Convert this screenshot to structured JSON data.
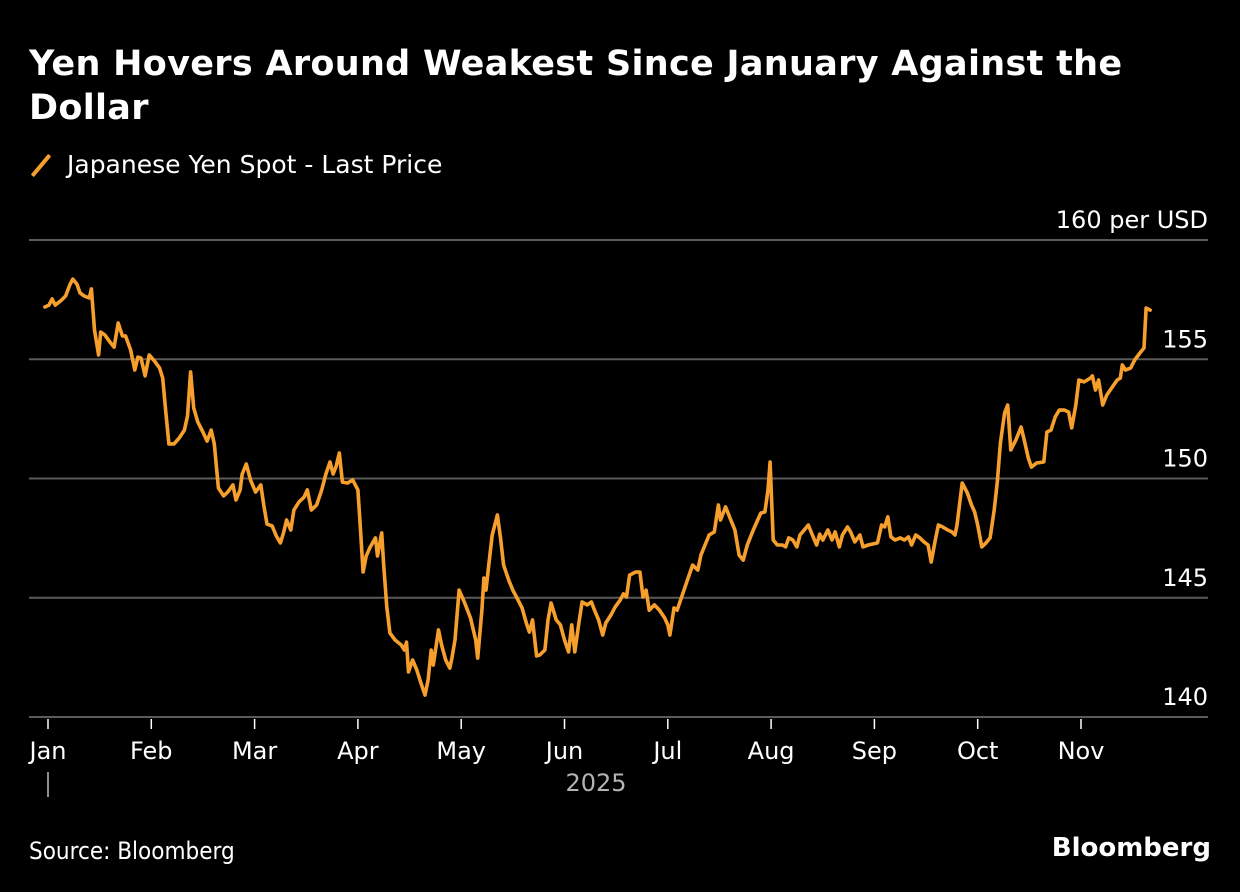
{
  "header": {
    "title": "Yen Hovers Around Weakest Since January Against the Dollar"
  },
  "footer": {
    "source": "Source: Bloomberg",
    "brand": "Bloomberg"
  },
  "colors": {
    "background": "#000000",
    "series": "#f79f2d",
    "grid": "#5a5a5a",
    "text": "#ffffff",
    "muted": "#b3b3b3"
  },
  "chart_data": {
    "type": "line",
    "title": "Yen Hovers Around Weakest Since January Against the Dollar",
    "xlabel": "2025",
    "ylabel": "per USD",
    "legend": [
      {
        "name": "Japanese Yen Spot - Last Price",
        "color": "#f79f2d",
        "position": "top-left"
      }
    ],
    "y_unit_label": "160 per USD",
    "ylim": [
      140,
      160
    ],
    "yticks": [
      {
        "value": 160,
        "label": "160 per USD"
      },
      {
        "value": 155,
        "label": "155"
      },
      {
        "value": 150,
        "label": "150"
      },
      {
        "value": 145,
        "label": "145"
      },
      {
        "value": 140,
        "label": "140"
      }
    ],
    "x_unit": "months since Jan 1 2025",
    "xlim": [
      -0.15,
      11.5
    ],
    "xticks": [
      {
        "value": 0,
        "label": "Jan"
      },
      {
        "value": 1,
        "label": "Feb"
      },
      {
        "value": 2,
        "label": "Mar"
      },
      {
        "value": 3,
        "label": "Apr"
      },
      {
        "value": 4,
        "label": "May"
      },
      {
        "value": 5,
        "label": "Jun"
      },
      {
        "value": 6,
        "label": "Jul"
      },
      {
        "value": 7,
        "label": "Aug"
      },
      {
        "value": 8,
        "label": "Sep"
      },
      {
        "value": 9,
        "label": "Oct"
      },
      {
        "value": 10,
        "label": "Nov"
      }
    ],
    "year_label": "2025",
    "grid": true,
    "series": [
      {
        "name": "Japanese Yen Spot - Last Price",
        "points": [
          [
            -0.03,
            157.19
          ],
          [
            0.01,
            157.27
          ],
          [
            0.04,
            157.53
          ],
          [
            0.07,
            157.27
          ],
          [
            0.12,
            157.44
          ],
          [
            0.17,
            157.65
          ],
          [
            0.21,
            158.11
          ],
          [
            0.24,
            158.36
          ],
          [
            0.28,
            158.15
          ],
          [
            0.31,
            157.78
          ],
          [
            0.35,
            157.65
          ],
          [
            0.4,
            157.57
          ],
          [
            0.42,
            157.95
          ],
          [
            0.45,
            156.23
          ],
          [
            0.49,
            155.18
          ],
          [
            0.51,
            156.14
          ],
          [
            0.55,
            156.02
          ],
          [
            0.6,
            155.72
          ],
          [
            0.64,
            155.51
          ],
          [
            0.68,
            156.52
          ],
          [
            0.72,
            155.98
          ],
          [
            0.75,
            155.98
          ],
          [
            0.8,
            155.39
          ],
          [
            0.84,
            154.55
          ],
          [
            0.87,
            155.09
          ],
          [
            0.9,
            155.05
          ],
          [
            0.94,
            154.3
          ],
          [
            0.98,
            155.18
          ],
          [
            1.03,
            154.93
          ],
          [
            1.08,
            154.63
          ],
          [
            1.11,
            154.21
          ],
          [
            1.14,
            152.79
          ],
          [
            1.17,
            151.45
          ],
          [
            1.22,
            151.45
          ],
          [
            1.27,
            151.7
          ],
          [
            1.32,
            152.03
          ],
          [
            1.35,
            152.62
          ],
          [
            1.38,
            154.47
          ],
          [
            1.41,
            152.96
          ],
          [
            1.45,
            152.37
          ],
          [
            1.5,
            151.95
          ],
          [
            1.54,
            151.57
          ],
          [
            1.58,
            152.03
          ],
          [
            1.61,
            151.45
          ],
          [
            1.65,
            149.6
          ],
          [
            1.7,
            149.27
          ],
          [
            1.74,
            149.43
          ],
          [
            1.79,
            149.73
          ],
          [
            1.82,
            149.1
          ],
          [
            1.86,
            149.52
          ],
          [
            1.88,
            150.19
          ],
          [
            1.92,
            150.61
          ],
          [
            1.96,
            149.94
          ],
          [
            2.01,
            149.43
          ],
          [
            2.06,
            149.73
          ],
          [
            2.09,
            148.85
          ],
          [
            2.12,
            148.09
          ],
          [
            2.17,
            148.01
          ],
          [
            2.21,
            147.59
          ],
          [
            2.25,
            147.3
          ],
          [
            2.28,
            147.72
          ],
          [
            2.31,
            148.26
          ],
          [
            2.35,
            147.84
          ],
          [
            2.38,
            148.68
          ],
          [
            2.43,
            149.02
          ],
          [
            2.48,
            149.23
          ],
          [
            2.51,
            149.52
          ],
          [
            2.55,
            148.68
          ],
          [
            2.6,
            148.89
          ],
          [
            2.65,
            149.52
          ],
          [
            2.69,
            150.19
          ],
          [
            2.73,
            150.69
          ],
          [
            2.76,
            150.19
          ],
          [
            2.79,
            150.52
          ],
          [
            2.82,
            151.07
          ],
          [
            2.85,
            149.85
          ],
          [
            2.9,
            149.81
          ],
          [
            2.95,
            149.94
          ],
          [
            3.0,
            149.52
          ],
          [
            3.02,
            148.18
          ],
          [
            3.05,
            146.08
          ],
          [
            3.08,
            146.75
          ],
          [
            3.12,
            147.13
          ],
          [
            3.17,
            147.51
          ],
          [
            3.19,
            146.75
          ],
          [
            3.23,
            147.72
          ],
          [
            3.25,
            146.37
          ],
          [
            3.28,
            144.61
          ],
          [
            3.31,
            143.52
          ],
          [
            3.36,
            143.23
          ],
          [
            3.42,
            143.02
          ],
          [
            3.45,
            142.81
          ],
          [
            3.47,
            143.14
          ],
          [
            3.49,
            141.89
          ],
          [
            3.53,
            142.39
          ],
          [
            3.57,
            141.97
          ],
          [
            3.61,
            141.43
          ],
          [
            3.65,
            140.92
          ],
          [
            3.68,
            141.55
          ],
          [
            3.71,
            142.81
          ],
          [
            3.73,
            142.18
          ],
          [
            3.78,
            143.65
          ],
          [
            3.81,
            143.02
          ],
          [
            3.85,
            142.39
          ],
          [
            3.89,
            142.05
          ],
          [
            3.91,
            142.47
          ],
          [
            3.94,
            143.23
          ],
          [
            3.98,
            145.32
          ],
          [
            4.03,
            144.82
          ],
          [
            4.09,
            144.15
          ],
          [
            4.14,
            143.23
          ],
          [
            4.16,
            142.47
          ],
          [
            4.2,
            144.48
          ],
          [
            4.22,
            145.83
          ],
          [
            4.24,
            145.32
          ],
          [
            4.27,
            146.5
          ],
          [
            4.3,
            147.63
          ],
          [
            4.35,
            148.47
          ],
          [
            4.38,
            147.51
          ],
          [
            4.41,
            146.37
          ],
          [
            4.46,
            145.74
          ],
          [
            4.5,
            145.32
          ],
          [
            4.54,
            144.99
          ],
          [
            4.59,
            144.57
          ],
          [
            4.63,
            143.94
          ],
          [
            4.66,
            143.56
          ],
          [
            4.69,
            144.07
          ],
          [
            4.73,
            142.56
          ],
          [
            4.76,
            142.6
          ],
          [
            4.81,
            142.81
          ],
          [
            4.84,
            144.07
          ],
          [
            4.87,
            144.78
          ],
          [
            4.92,
            144.07
          ],
          [
            4.96,
            143.86
          ],
          [
            5.0,
            143.23
          ],
          [
            5.04,
            142.73
          ],
          [
            5.07,
            143.86
          ],
          [
            5.1,
            142.73
          ],
          [
            5.14,
            143.98
          ],
          [
            5.17,
            144.82
          ],
          [
            5.22,
            144.7
          ],
          [
            5.26,
            144.82
          ],
          [
            5.29,
            144.48
          ],
          [
            5.33,
            144.07
          ],
          [
            5.37,
            143.44
          ],
          [
            5.4,
            143.94
          ],
          [
            5.45,
            144.28
          ],
          [
            5.49,
            144.61
          ],
          [
            5.54,
            144.91
          ],
          [
            5.57,
            145.16
          ],
          [
            5.6,
            145.03
          ],
          [
            5.63,
            145.95
          ],
          [
            5.69,
            146.08
          ],
          [
            5.73,
            146.08
          ],
          [
            5.76,
            145.03
          ],
          [
            5.79,
            145.32
          ],
          [
            5.82,
            144.48
          ],
          [
            5.87,
            144.7
          ],
          [
            5.92,
            144.48
          ],
          [
            5.97,
            144.15
          ],
          [
            6.0,
            143.86
          ],
          [
            6.02,
            143.44
          ],
          [
            6.06,
            144.57
          ],
          [
            6.09,
            144.48
          ],
          [
            6.14,
            145.11
          ],
          [
            6.19,
            145.74
          ],
          [
            6.24,
            146.37
          ],
          [
            6.29,
            146.16
          ],
          [
            6.32,
            146.79
          ],
          [
            6.38,
            147.42
          ],
          [
            6.4,
            147.63
          ],
          [
            6.45,
            147.76
          ],
          [
            6.49,
            148.89
          ],
          [
            6.51,
            148.26
          ],
          [
            6.56,
            148.81
          ],
          [
            6.61,
            148.26
          ],
          [
            6.65,
            147.84
          ],
          [
            6.69,
            146.79
          ],
          [
            6.73,
            146.58
          ],
          [
            6.77,
            147.21
          ],
          [
            6.82,
            147.76
          ],
          [
            6.87,
            148.26
          ],
          [
            6.9,
            148.55
          ],
          [
            6.94,
            148.6
          ],
          [
            6.97,
            149.52
          ],
          [
            6.99,
            150.69
          ],
          [
            7.02,
            147.42
          ],
          [
            7.06,
            147.21
          ],
          [
            7.11,
            147.21
          ],
          [
            7.14,
            147.13
          ],
          [
            7.17,
            147.51
          ],
          [
            7.21,
            147.42
          ],
          [
            7.25,
            147.13
          ],
          [
            7.28,
            147.63
          ],
          [
            7.32,
            147.84
          ],
          [
            7.36,
            148.05
          ],
          [
            7.4,
            147.63
          ],
          [
            7.44,
            147.21
          ],
          [
            7.47,
            147.67
          ],
          [
            7.5,
            147.42
          ],
          [
            7.55,
            147.84
          ],
          [
            7.59,
            147.42
          ],
          [
            7.62,
            147.76
          ],
          [
            7.66,
            147.13
          ],
          [
            7.69,
            147.63
          ],
          [
            7.74,
            147.97
          ],
          [
            7.77,
            147.76
          ],
          [
            7.81,
            147.34
          ],
          [
            7.86,
            147.63
          ],
          [
            7.89,
            147.13
          ],
          [
            7.94,
            147.21
          ],
          [
            8.03,
            147.3
          ],
          [
            8.07,
            148.05
          ],
          [
            8.1,
            147.97
          ],
          [
            8.13,
            148.39
          ],
          [
            8.16,
            147.55
          ],
          [
            8.2,
            147.42
          ],
          [
            8.25,
            147.51
          ],
          [
            8.29,
            147.42
          ],
          [
            8.33,
            147.55
          ],
          [
            8.36,
            147.21
          ],
          [
            8.4,
            147.63
          ],
          [
            8.44,
            147.51
          ],
          [
            8.48,
            147.34
          ],
          [
            8.52,
            147.21
          ],
          [
            8.55,
            146.5
          ],
          [
            8.59,
            147.42
          ],
          [
            8.62,
            148.05
          ],
          [
            8.66,
            147.97
          ],
          [
            8.71,
            147.84
          ],
          [
            8.75,
            147.76
          ],
          [
            8.78,
            147.63
          ],
          [
            8.8,
            148.05
          ],
          [
            8.85,
            149.81
          ],
          [
            8.9,
            149.39
          ],
          [
            8.94,
            148.89
          ],
          [
            8.97,
            148.6
          ],
          [
            9.0,
            148.05
          ],
          [
            9.04,
            147.13
          ],
          [
            9.08,
            147.3
          ],
          [
            9.12,
            147.51
          ],
          [
            9.16,
            148.68
          ],
          [
            9.19,
            149.85
          ],
          [
            9.22,
            151.49
          ],
          [
            9.26,
            152.75
          ],
          [
            9.29,
            153.08
          ],
          [
            9.32,
            151.2
          ],
          [
            9.37,
            151.62
          ],
          [
            9.42,
            152.16
          ],
          [
            9.45,
            151.62
          ],
          [
            9.49,
            150.86
          ],
          [
            9.52,
            150.48
          ],
          [
            9.57,
            150.65
          ],
          [
            9.64,
            150.69
          ],
          [
            9.67,
            151.95
          ],
          [
            9.71,
            152.03
          ],
          [
            9.75,
            152.58
          ],
          [
            9.79,
            152.87
          ],
          [
            9.84,
            152.87
          ],
          [
            9.88,
            152.79
          ],
          [
            9.91,
            152.12
          ],
          [
            9.95,
            153.08
          ],
          [
            9.98,
            154.13
          ],
          [
            10.03,
            154.05
          ],
          [
            10.09,
            154.21
          ],
          [
            10.11,
            154.3
          ],
          [
            10.14,
            153.71
          ],
          [
            10.17,
            154.13
          ],
          [
            10.21,
            153.08
          ],
          [
            10.25,
            153.5
          ],
          [
            10.31,
            153.88
          ],
          [
            10.35,
            154.13
          ],
          [
            10.38,
            154.21
          ],
          [
            10.4,
            154.76
          ],
          [
            10.43,
            154.55
          ],
          [
            10.48,
            154.63
          ],
          [
            10.52,
            154.97
          ],
          [
            10.57,
            155.26
          ],
          [
            10.61,
            155.47
          ],
          [
            10.63,
            157.15
          ],
          [
            10.67,
            157.06
          ]
        ]
      }
    ]
  }
}
